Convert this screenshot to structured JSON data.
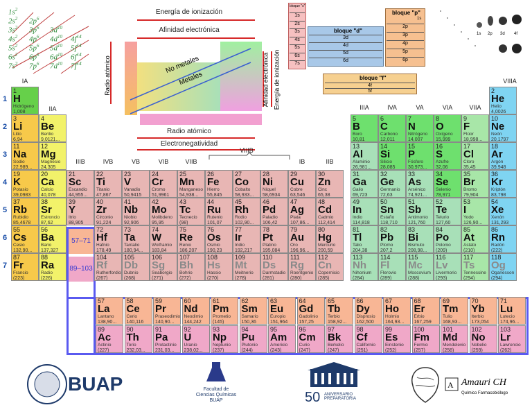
{
  "config_rows": [
    [
      "1s2"
    ],
    [
      "2s2",
      "2p6"
    ],
    [
      "3s2",
      "3p6",
      "3d10"
    ],
    [
      "4s2",
      "4p6",
      "4d10",
      "4f14"
    ],
    [
      "5s2",
      "5p6",
      "5d10",
      "5f14"
    ],
    [
      "6s2",
      "6p6",
      "6d10",
      "6f14"
    ],
    [
      "7s2",
      "7p6",
      "7d10",
      "7f14"
    ]
  ],
  "trends": {
    "ionization_energy": "Energía de ionización",
    "electron_affinity": "Afinidad electrónica",
    "atomic_radius": "Radio atómico",
    "nonmetals": "No metales",
    "metals": "Metales",
    "atomic_radius_bottom": "Radio atómico",
    "electronegativity": "Electronegatividad",
    "affinity_vertical": "Afinidad electrónica",
    "ionization_vertical": "Energía de ionización"
  },
  "blocks": {
    "s": "bloque \"s\"",
    "d": "bloque \"d\"",
    "p": "bloque \"p\"",
    "f": "bloque \"f\"",
    "d_rows": [
      "3d",
      "4d",
      "5d",
      "6d"
    ],
    "p_rows": [
      "2p",
      "3p",
      "4p",
      "5p",
      "6p"
    ],
    "f_rows": [
      "4f",
      "5f"
    ],
    "s_rows": [
      "1s",
      "2s",
      "3s",
      "4s",
      "5s",
      "6s",
      "7s"
    ],
    "s_top": "1s"
  },
  "orbitals": [
    "1s",
    "2p",
    "3d",
    "4f"
  ],
  "group_labels": {
    "IA": "IA",
    "IIA": "IIA",
    "IIIB": "IIIB",
    "IVB": "IVB",
    "VB": "VB",
    "VIB": "VIB",
    "VIIB": "VIIB",
    "VIIIB": "VIIIB",
    "IB": "IB",
    "IIB": "IIB",
    "IIIA": "IIIA",
    "IVA": "IVA",
    "VA": "VA",
    "VIA": "VIA",
    "VIIA": "VIIA",
    "VIIIA": "VIIIA"
  },
  "periods": [
    "1",
    "2",
    "3",
    "4",
    "5",
    "6",
    "7"
  ],
  "placeholders": {
    "lanthanides": "57–71",
    "actinides": "89–103"
  },
  "elements": [
    {
      "n": "1",
      "s": "H",
      "name": "Hidrógeno",
      "m": "1,008",
      "c": "h"
    },
    {
      "n": "2",
      "s": "He",
      "name": "Helio",
      "m": "4,0026",
      "c": "ng"
    },
    {
      "n": "3",
      "s": "Li",
      "name": "Litio",
      "m": "6,94",
      "c": "alk"
    },
    {
      "n": "4",
      "s": "Be",
      "name": "Berilio",
      "m": "9,0121...",
      "c": "ae"
    },
    {
      "n": "5",
      "s": "B",
      "name": "Boro",
      "m": "10,81",
      "c": "nm"
    },
    {
      "n": "6",
      "s": "C",
      "name": "Carbono",
      "m": "12,011",
      "c": "nm"
    },
    {
      "n": "7",
      "s": "N",
      "name": "Nitrógeno",
      "m": "14,007",
      "c": "nm"
    },
    {
      "n": "8",
      "s": "O",
      "name": "Oxígeno",
      "m": "15,999",
      "c": "nm"
    },
    {
      "n": "9",
      "s": "F",
      "name": "Flúor",
      "m": "18,998...",
      "c": "hal"
    },
    {
      "n": "10",
      "s": "Ne",
      "name": "Neón",
      "m": "20,1797",
      "c": "ng"
    },
    {
      "n": "11",
      "s": "Na",
      "name": "Sodio",
      "m": "22,989...",
      "c": "alk"
    },
    {
      "n": "12",
      "s": "Mg",
      "name": "Magnesio",
      "m": "24,305",
      "c": "ae"
    },
    {
      "n": "13",
      "s": "Al",
      "name": "Aluminio",
      "m": "26,981...",
      "c": "ml"
    },
    {
      "n": "14",
      "s": "Si",
      "name": "Silicio",
      "m": "28,085",
      "c": "nm"
    },
    {
      "n": "15",
      "s": "P",
      "name": "Fósforo",
      "m": "30,973...",
      "c": "nm"
    },
    {
      "n": "16",
      "s": "S",
      "name": "Azufre",
      "m": "32,06",
      "c": "nm"
    },
    {
      "n": "17",
      "s": "Cl",
      "name": "Cloro",
      "m": "35,45",
      "c": "hal"
    },
    {
      "n": "18",
      "s": "Ar",
      "name": "Argón",
      "m": "39,948",
      "c": "ng"
    },
    {
      "n": "19",
      "s": "K",
      "name": "Potasio",
      "m": "39,0983",
      "c": "alk"
    },
    {
      "n": "20",
      "s": "Ca",
      "name": "Calcio",
      "m": "40,078",
      "c": "ae"
    },
    {
      "n": "21",
      "s": "Sc",
      "name": "Escandio",
      "m": "44,955...",
      "c": "tm"
    },
    {
      "n": "22",
      "s": "Ti",
      "name": "Titanio",
      "m": "47,867",
      "c": "tm"
    },
    {
      "n": "23",
      "s": "V",
      "name": "Vanadio",
      "m": "50,9415",
      "c": "tm"
    },
    {
      "n": "24",
      "s": "Cr",
      "name": "Cromo",
      "m": "51,9961",
      "c": "tm"
    },
    {
      "n": "25",
      "s": "Mn",
      "name": "Manganeso",
      "m": "54,938...",
      "c": "tm"
    },
    {
      "n": "26",
      "s": "Fe",
      "name": "Hierro",
      "m": "55,845",
      "c": "tm"
    },
    {
      "n": "27",
      "s": "Co",
      "name": "Cobalto",
      "m": "58,933...",
      "c": "tm"
    },
    {
      "n": "28",
      "s": "Ni",
      "name": "Níquel",
      "m": "58,6934",
      "c": "tm"
    },
    {
      "n": "29",
      "s": "Cu",
      "name": "Cobre",
      "m": "63,546",
      "c": "tm"
    },
    {
      "n": "30",
      "s": "Zn",
      "name": "Cinc",
      "m": "65,38",
      "c": "tm"
    },
    {
      "n": "31",
      "s": "Ga",
      "name": "Galio",
      "m": "69,723",
      "c": "ml"
    },
    {
      "n": "32",
      "s": "Ge",
      "name": "Germanio",
      "m": "72,63",
      "c": "ml"
    },
    {
      "n": "33",
      "s": "As",
      "name": "Arsénico",
      "m": "74,921...",
      "c": "ml"
    },
    {
      "n": "34",
      "s": "Se",
      "name": "Selenio",
      "m": "78,971",
      "c": "nm"
    },
    {
      "n": "35",
      "s": "Br",
      "name": "Bromo",
      "m": "79,904",
      "c": "hal"
    },
    {
      "n": "36",
      "s": "Kr",
      "name": "Kriptón",
      "m": "83,798",
      "c": "ng"
    },
    {
      "n": "37",
      "s": "Rb",
      "name": "Rubidio",
      "m": "85,4678",
      "c": "alk"
    },
    {
      "n": "38",
      "s": "Sr",
      "name": "Estroncio",
      "m": "87,62",
      "c": "ae"
    },
    {
      "n": "39",
      "s": "Y",
      "name": "Itrio",
      "m": "88,905",
      "c": "tm"
    },
    {
      "n": "40",
      "s": "Zr",
      "name": "Circonio",
      "m": "91,224",
      "c": "tm"
    },
    {
      "n": "41",
      "s": "Nb",
      "name": "Niobio",
      "m": "92,906",
      "c": "tm"
    },
    {
      "n": "42",
      "s": "Mo",
      "name": "Molibdeno",
      "m": "95,95",
      "c": "tm"
    },
    {
      "n": "43",
      "s": "Tc",
      "name": "Tecnecio",
      "m": "(98)",
      "c": "tm"
    },
    {
      "n": "44",
      "s": "Ru",
      "name": "Rutenio",
      "m": "101,07",
      "c": "tm"
    },
    {
      "n": "45",
      "s": "Rh",
      "name": "Rodio",
      "m": "102,90...",
      "c": "tm"
    },
    {
      "n": "46",
      "s": "Pd",
      "name": "Paladio",
      "m": "106,42",
      "c": "tm"
    },
    {
      "n": "47",
      "s": "Ag",
      "name": "Plata",
      "m": "107,86...",
      "c": "tm"
    },
    {
      "n": "48",
      "s": "Cd",
      "name": "Cadmio",
      "m": "112,414",
      "c": "tm"
    },
    {
      "n": "49",
      "s": "In",
      "name": "Indio",
      "m": "114,818",
      "c": "ml"
    },
    {
      "n": "50",
      "s": "Sn",
      "name": "Estaño",
      "m": "118,710",
      "c": "ml"
    },
    {
      "n": "51",
      "s": "Sb",
      "name": "Antimonio",
      "m": "121,760",
      "c": "ml"
    },
    {
      "n": "52",
      "s": "Te",
      "name": "Telurio",
      "m": "127,60",
      "c": "ml"
    },
    {
      "n": "53",
      "s": "I",
      "name": "Yodo",
      "m": "126,90...",
      "c": "hal"
    },
    {
      "n": "54",
      "s": "Xe",
      "name": "Xenón",
      "m": "131,293",
      "c": "ng"
    },
    {
      "n": "55",
      "s": "Cs",
      "name": "Cesio",
      "m": "132,90...",
      "c": "alk"
    },
    {
      "n": "56",
      "s": "Ba",
      "name": "Bario",
      "m": "137,327",
      "c": "ae"
    },
    {
      "n": "72",
      "s": "Hf",
      "name": "Hafnio",
      "m": "178,49",
      "c": "tm"
    },
    {
      "n": "73",
      "s": "Ta",
      "name": "Tantalio",
      "m": "180,94...",
      "c": "tm"
    },
    {
      "n": "74",
      "s": "W",
      "name": "Wolframio",
      "m": "183,84",
      "c": "tm"
    },
    {
      "n": "75",
      "s": "Re",
      "name": "Renio",
      "m": "186,207",
      "c": "tm"
    },
    {
      "n": "76",
      "s": "Os",
      "name": "Osmio",
      "m": "190,23",
      "c": "tm"
    },
    {
      "n": "77",
      "s": "Ir",
      "name": "Iridio",
      "m": "192,217",
      "c": "tm"
    },
    {
      "n": "78",
      "s": "Pt",
      "name": "Platino",
      "m": "195,084",
      "c": "tm"
    },
    {
      "n": "79",
      "s": "Au",
      "name": "Oro",
      "m": "196,96...",
      "c": "tm"
    },
    {
      "n": "80",
      "s": "Hg",
      "name": "Mercurio",
      "m": "200,59",
      "c": "tm"
    },
    {
      "n": "81",
      "s": "Tl",
      "name": "Talio",
      "m": "204,38",
      "c": "ml"
    },
    {
      "n": "82",
      "s": "Pb",
      "name": "Plomo",
      "m": "207,2",
      "c": "ml"
    },
    {
      "n": "83",
      "s": "Bi",
      "name": "Bismuto",
      "m": "208,98...",
      "c": "ml"
    },
    {
      "n": "84",
      "s": "Po",
      "name": "Polonio",
      "m": "(209)",
      "c": "ml"
    },
    {
      "n": "85",
      "s": "At",
      "name": "Astato",
      "m": "(210)",
      "c": "hal"
    },
    {
      "n": "86",
      "s": "Rn",
      "name": "Radón",
      "m": "(222)",
      "c": "ng"
    },
    {
      "n": "87",
      "s": "Fr",
      "name": "Francio",
      "m": "(223)",
      "c": "alk"
    },
    {
      "n": "88",
      "s": "Ra",
      "name": "Radio",
      "m": "(226)",
      "c": "ae"
    },
    {
      "n": "104",
      "s": "Rf",
      "name": "Rutherfordio",
      "m": "(267)",
      "c": "tm",
      "u": true
    },
    {
      "n": "105",
      "s": "Db",
      "name": "Dubnio",
      "m": "(268)",
      "c": "tm",
      "u": true
    },
    {
      "n": "106",
      "s": "Sg",
      "name": "Seaborgio",
      "m": "(271)",
      "c": "tm",
      "u": true
    },
    {
      "n": "107",
      "s": "Bh",
      "name": "Bohrio",
      "m": "(272)",
      "c": "tm",
      "u": true
    },
    {
      "n": "108",
      "s": "Hs",
      "name": "Hassio",
      "m": "(270)",
      "c": "tm",
      "u": true
    },
    {
      "n": "109",
      "s": "Mt",
      "name": "Meitnerio",
      "m": "(278)",
      "c": "tm",
      "u": true
    },
    {
      "n": "110",
      "s": "Ds",
      "name": "Darmstadio",
      "m": "(281)",
      "c": "tm",
      "u": true
    },
    {
      "n": "111",
      "s": "Rg",
      "name": "Roentgenio",
      "m": "(280)",
      "c": "tm",
      "u": true
    },
    {
      "n": "112",
      "s": "Cn",
      "name": "Copernicio",
      "m": "(285)",
      "c": "tm",
      "u": true
    },
    {
      "n": "113",
      "s": "Nh",
      "name": "Nihonium",
      "m": "(284)",
      "c": "ml",
      "u": true
    },
    {
      "n": "114",
      "s": "Fl",
      "name": "Flerovio",
      "m": "(289)",
      "c": "ml",
      "u": true
    },
    {
      "n": "115",
      "s": "Mc",
      "name": "Moscovium",
      "m": "(288)",
      "c": "ml",
      "u": true
    },
    {
      "n": "116",
      "s": "Lv",
      "name": "Livermorio",
      "m": "(293)",
      "c": "ml",
      "u": true
    },
    {
      "n": "117",
      "s": "Ts",
      "name": "Tennessine",
      "m": "(294)",
      "c": "hal",
      "u": true
    },
    {
      "n": "118",
      "s": "Og",
      "name": "Oganesson",
      "m": "(294)",
      "c": "ng",
      "u": true
    }
  ],
  "lanthanides": [
    {
      "n": "57",
      "s": "La",
      "name": "Lantano",
      "m": "138,90..."
    },
    {
      "n": "58",
      "s": "Ce",
      "name": "Cerio",
      "m": "140,116"
    },
    {
      "n": "59",
      "s": "Pr",
      "name": "Praseodimio",
      "m": "140,90..."
    },
    {
      "n": "60",
      "s": "Nd",
      "name": "Neodimio",
      "m": "144,242"
    },
    {
      "n": "61",
      "s": "Pm",
      "name": "Prometio",
      "m": "(145)"
    },
    {
      "n": "62",
      "s": "Sm",
      "name": "Samario",
      "m": "150,36"
    },
    {
      "n": "63",
      "s": "Eu",
      "name": "Europio",
      "m": "151,964"
    },
    {
      "n": "64",
      "s": "Gd",
      "name": "Gadolinio",
      "m": "157,25"
    },
    {
      "n": "65",
      "s": "Tb",
      "name": "Terbio",
      "m": "158,92..."
    },
    {
      "n": "66",
      "s": "Dy",
      "name": "Disprosio",
      "m": "162,500"
    },
    {
      "n": "67",
      "s": "Ho",
      "name": "Holmio",
      "m": "164,93..."
    },
    {
      "n": "68",
      "s": "Er",
      "name": "Erbio",
      "m": "167,259"
    },
    {
      "n": "69",
      "s": "Tm",
      "name": "Tulio",
      "m": "168,93..."
    },
    {
      "n": "70",
      "s": "Yb",
      "name": "Iterbio",
      "m": "173,054"
    },
    {
      "n": "71",
      "s": "Lu",
      "name": "Lutecio",
      "m": "174,96..."
    }
  ],
  "actinides": [
    {
      "n": "89",
      "s": "Ac",
      "name": "Actinio",
      "m": "(227)"
    },
    {
      "n": "90",
      "s": "Th",
      "name": "Torio",
      "m": "232,03..."
    },
    {
      "n": "91",
      "s": "Pa",
      "name": "Protactinio",
      "m": "231,03..."
    },
    {
      "n": "92",
      "s": "U",
      "name": "Uranio",
      "m": "238,02..."
    },
    {
      "n": "93",
      "s": "Np",
      "name": "Neptunio",
      "m": "(237)"
    },
    {
      "n": "94",
      "s": "Pu",
      "name": "Plutonio",
      "m": "(244)"
    },
    {
      "n": "95",
      "s": "Am",
      "name": "Americio",
      "m": "(243)"
    },
    {
      "n": "96",
      "s": "Cm",
      "name": "Curio",
      "m": "(247)"
    },
    {
      "n": "97",
      "s": "Bk",
      "name": "Berkelio",
      "m": "(247)"
    },
    {
      "n": "98",
      "s": "Cf",
      "name": "Californio",
      "m": "(251)"
    },
    {
      "n": "99",
      "s": "Es",
      "name": "Einstenio",
      "m": "(252)"
    },
    {
      "n": "100",
      "s": "Fm",
      "name": "Fermio",
      "m": "(257)"
    },
    {
      "n": "101",
      "s": "Md",
      "name": "Mendelevio",
      "m": "(258)"
    },
    {
      "n": "102",
      "s": "No",
      "name": "Nobelio",
      "m": "(259)"
    },
    {
      "n": "103",
      "s": "Lr",
      "name": "Lawrencio",
      "m": "(262)"
    }
  ],
  "logos": {
    "buap": "BUAP",
    "facultad_line1": "Facultad de",
    "facultad_line2": "Ciencias Químicas",
    "facultad_line3": "BUAP",
    "aniversario_num": "50",
    "aniversario_text": "ANIVERSARIO PREPARATORIA",
    "author_name": "Amauri CH",
    "author_title": "Químico Farmacobiólogo"
  },
  "colors": {
    "ionization_arrow": "#d62828",
    "trend_blue": "#3a5fd0",
    "highlight_border": "#5a5af0",
    "period_label": "#1a4ea8"
  }
}
